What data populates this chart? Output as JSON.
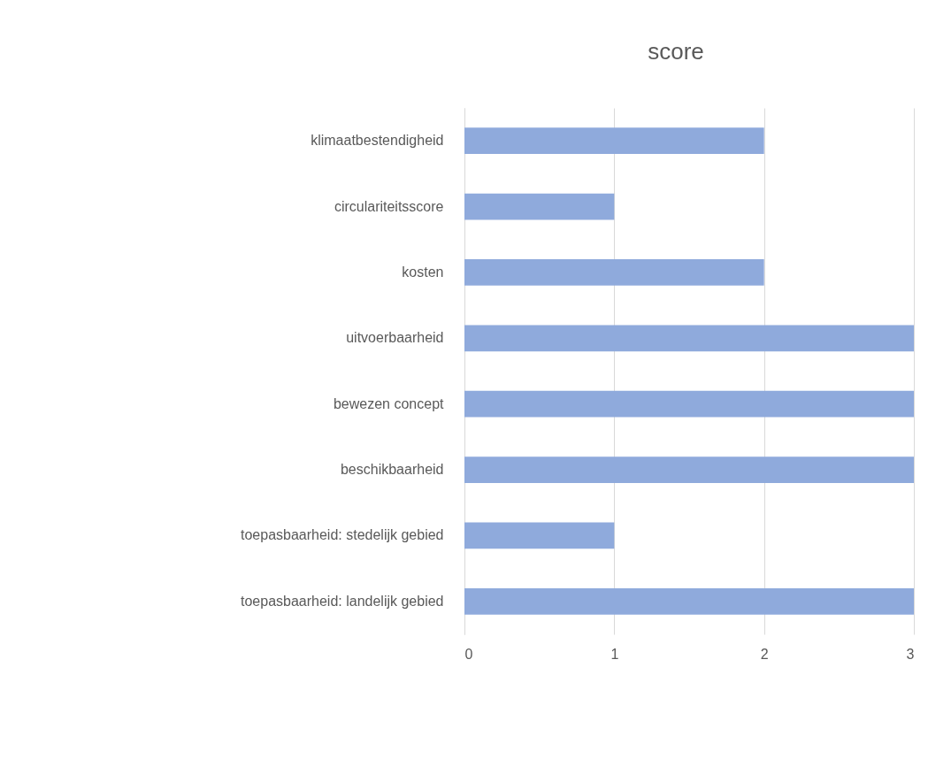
{
  "chart_data": {
    "type": "bar",
    "orientation": "horizontal",
    "title": "score",
    "categories": [
      "klimaatbestendigheid",
      "circulariteitsscore",
      "kosten",
      "uitvoerbaarheid",
      "bewezen concept",
      "beschikbaarheid",
      "toepasbaarheid: stedelijk gebied",
      "toepasbaarheid: landelijk gebied"
    ],
    "values": [
      2,
      1,
      2,
      3,
      3,
      3,
      1,
      3
    ],
    "color": "#8faadc",
    "xlim": [
      0,
      3
    ],
    "xticks": [
      0,
      1,
      2,
      3
    ],
    "grid": "x"
  }
}
